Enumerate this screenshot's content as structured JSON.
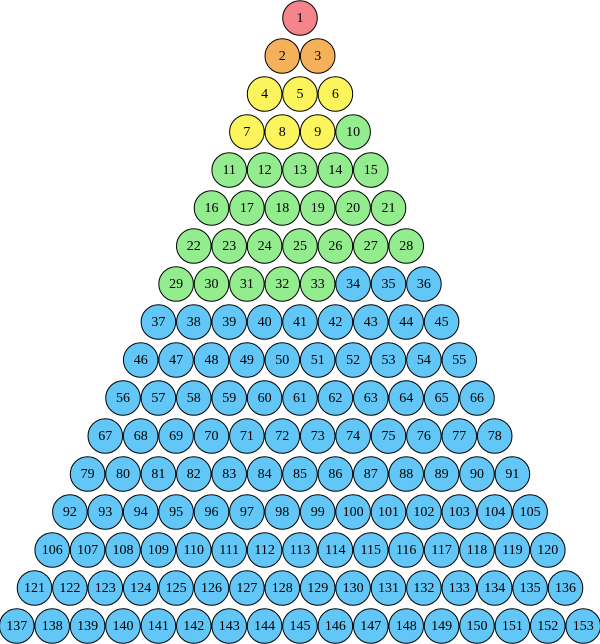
{
  "groups": [
    {
      "color": "#f4858c",
      "labels": [
        1
      ]
    },
    {
      "color": "#f5b05a",
      "labels": [
        2,
        3
      ]
    },
    {
      "color": "#fbf45c",
      "labels": [
        4,
        5,
        6,
        7,
        8,
        9
      ]
    },
    {
      "color": "#93ec8e",
      "labels": [
        10,
        11,
        12,
        13,
        14,
        15,
        16,
        17,
        18,
        19,
        20,
        21,
        22,
        23,
        24,
        25,
        26,
        27,
        28,
        29,
        30,
        31,
        32,
        33
      ]
    },
    {
      "color": "#62c6f6",
      "labels": [
        34,
        35,
        36,
        37,
        38,
        39,
        40,
        41,
        42,
        43,
        44,
        45,
        46,
        47,
        48,
        49,
        50,
        51,
        52,
        53,
        54,
        55,
        56,
        57,
        58,
        59,
        60,
        61,
        62,
        63,
        64,
        65,
        66,
        67,
        68,
        69,
        70,
        71,
        72,
        73,
        74,
        75,
        76,
        77,
        78,
        79,
        80,
        81,
        82,
        83,
        84,
        85,
        86,
        87,
        88,
        89,
        90,
        91,
        92,
        93,
        94,
        95,
        96,
        97,
        98,
        99,
        100,
        101,
        102,
        103,
        104,
        105,
        106,
        107,
        108,
        109,
        110,
        111,
        112,
        113,
        114,
        115,
        116,
        117,
        118,
        119,
        120,
        121,
        122,
        123,
        124,
        125,
        126,
        127,
        128,
        129,
        130,
        131,
        132,
        133,
        134,
        135,
        136,
        137,
        138,
        139,
        140,
        141,
        142,
        143,
        144,
        145,
        146,
        147,
        148,
        149,
        150,
        151,
        152,
        153
      ]
    }
  ]
}
